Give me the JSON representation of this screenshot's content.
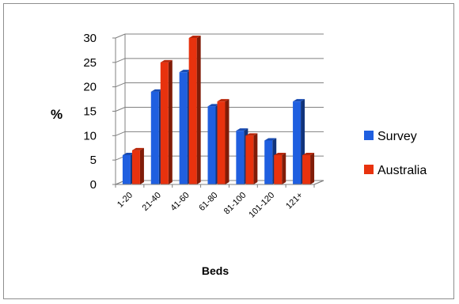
{
  "chart_data": {
    "type": "bar",
    "title": "",
    "xlabel": "Beds",
    "ylabel": "%",
    "ylim": [
      0,
      30
    ],
    "yticks": [
      0,
      5,
      10,
      15,
      20,
      25,
      30
    ],
    "categories": [
      "1-20",
      "21-40",
      "41-60",
      "61-80",
      "81-100",
      "101-120",
      "121+"
    ],
    "series": [
      {
        "name": "Survey",
        "color": "#1f5fe0",
        "values": [
          6,
          19,
          23,
          16,
          11,
          9,
          17
        ]
      },
      {
        "name": "Australia",
        "color": "#e8320e",
        "values": [
          7,
          25,
          30,
          17,
          10,
          6,
          6
        ]
      }
    ],
    "grid": true,
    "legend": "right",
    "style": "3d-bar"
  }
}
